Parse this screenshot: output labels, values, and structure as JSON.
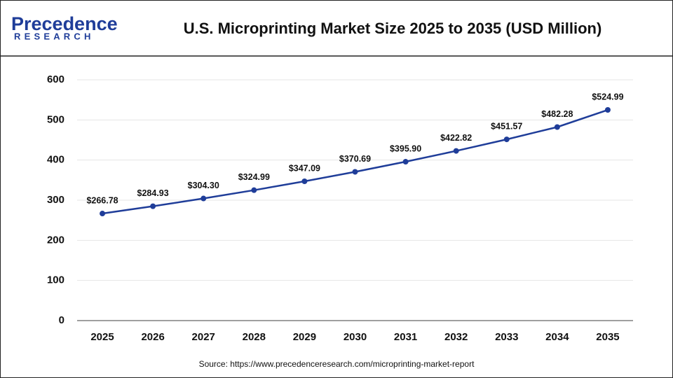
{
  "logo": {
    "name": "Precedence",
    "tagline": "RESEARCH"
  },
  "chart_data": {
    "type": "line",
    "title": "U.S. Microprinting Market Size 2025 to 2035 (USD Million)",
    "categories": [
      "2025",
      "2026",
      "2027",
      "2028",
      "2029",
      "2030",
      "2031",
      "2032",
      "2033",
      "2034",
      "2035"
    ],
    "values": [
      266.78,
      284.93,
      304.3,
      324.99,
      347.09,
      370.69,
      395.9,
      422.82,
      451.57,
      482.28,
      524.99
    ],
    "value_labels": [
      "$266.78",
      "$284.93",
      "$304.30",
      "$324.99",
      "$347.09",
      "$370.69",
      "$395.90",
      "$422.82",
      "$451.57",
      "$482.28",
      "$524.99"
    ],
    "color": "#1f3d99",
    "ylim": [
      0,
      600
    ],
    "yticks": [
      0,
      100,
      200,
      300,
      400,
      500,
      600
    ],
    "grid": true,
    "source": "Source: https://www.precedenceresearch.com/microprinting-market-report"
  }
}
